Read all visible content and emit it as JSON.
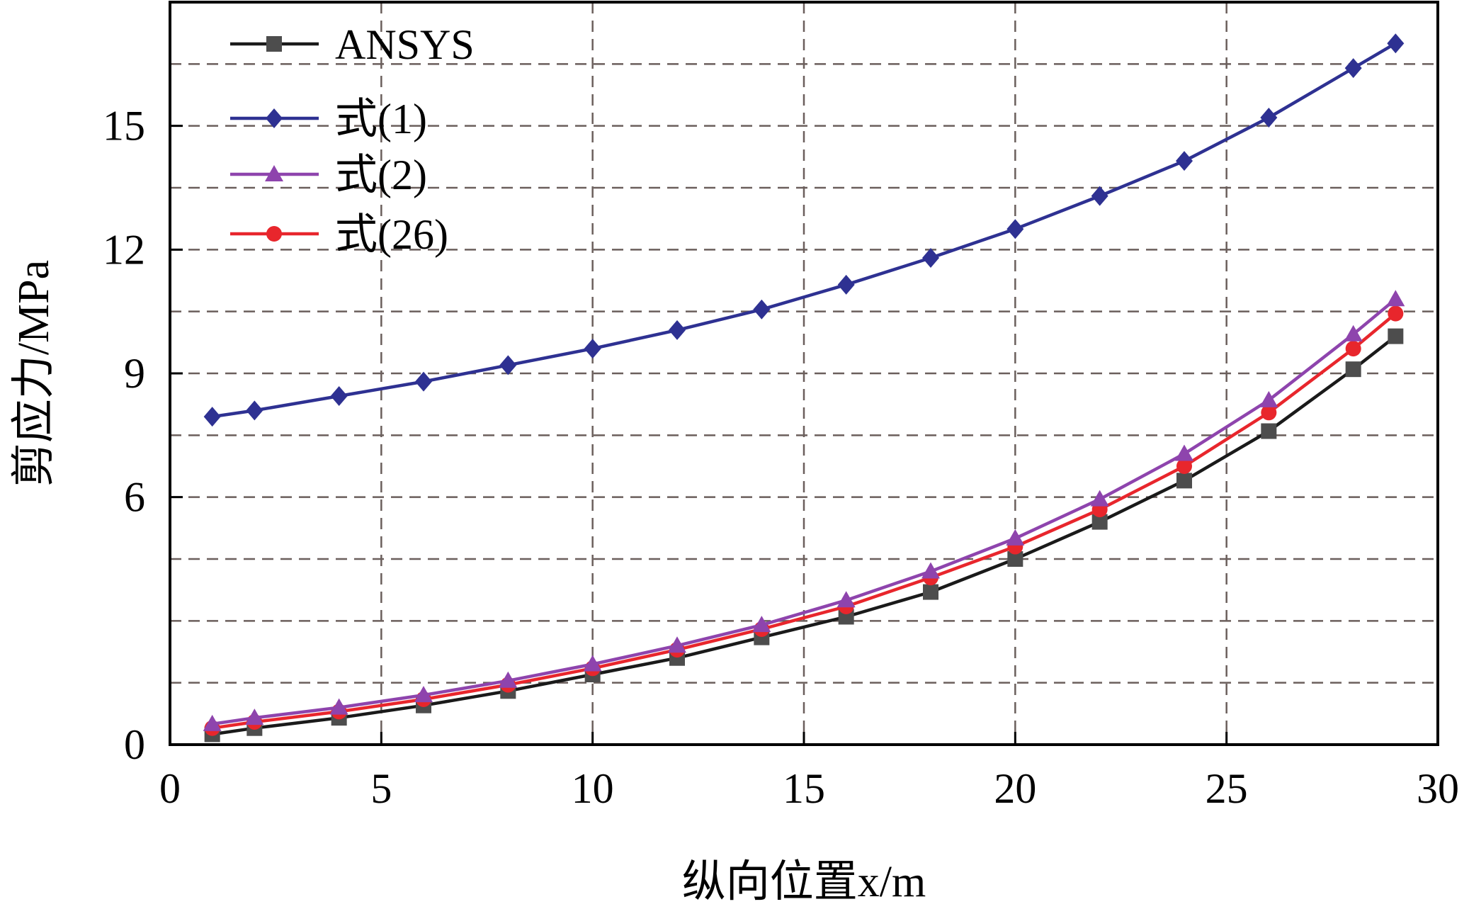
{
  "chart_data": {
    "type": "line",
    "xlabel": "纵向位置x/m",
    "ylabel": "剪应力/MPa",
    "xlim": [
      0,
      30
    ],
    "ylim": [
      0,
      18
    ],
    "xticks": [
      "0",
      "5",
      "10",
      "15",
      "20",
      "25",
      "30"
    ],
    "yticks": [
      "0",
      "6",
      "9",
      "12",
      "15"
    ],
    "grid": true,
    "grid_style": "dashed",
    "legend_position": "top-left",
    "x": [
      1,
      2,
      4,
      6,
      8,
      10,
      12,
      14,
      16,
      18,
      20,
      22,
      24,
      26,
      28,
      29
    ],
    "series": [
      {
        "name": "ANSYS",
        "color": "#1a1a1a",
        "marker": "square",
        "values": [
          0.25,
          0.4,
          0.65,
          0.95,
          1.3,
          1.7,
          2.1,
          2.6,
          3.1,
          3.7,
          4.5,
          5.4,
          6.4,
          7.6,
          9.1,
          9.9
        ]
      },
      {
        "name": "式(1)",
        "color": "#2e3192",
        "marker": "diamond",
        "values": [
          7.95,
          8.1,
          8.45,
          8.8,
          9.2,
          9.6,
          10.05,
          10.55,
          11.15,
          11.8,
          12.5,
          13.3,
          14.15,
          15.2,
          16.4,
          17.0
        ]
      },
      {
        "name": "式(2)",
        "color": "#8e44ad",
        "marker": "triangle",
        "values": [
          0.5,
          0.65,
          0.9,
          1.2,
          1.55,
          1.95,
          2.4,
          2.9,
          3.5,
          4.2,
          5.0,
          5.95,
          7.05,
          8.35,
          9.95,
          10.8
        ]
      },
      {
        "name": "式(26)",
        "color": "#e8262c",
        "marker": "circle",
        "values": [
          0.4,
          0.55,
          0.8,
          1.1,
          1.45,
          1.85,
          2.3,
          2.8,
          3.35,
          4.05,
          4.8,
          5.7,
          6.75,
          8.05,
          9.6,
          10.45
        ]
      }
    ]
  }
}
